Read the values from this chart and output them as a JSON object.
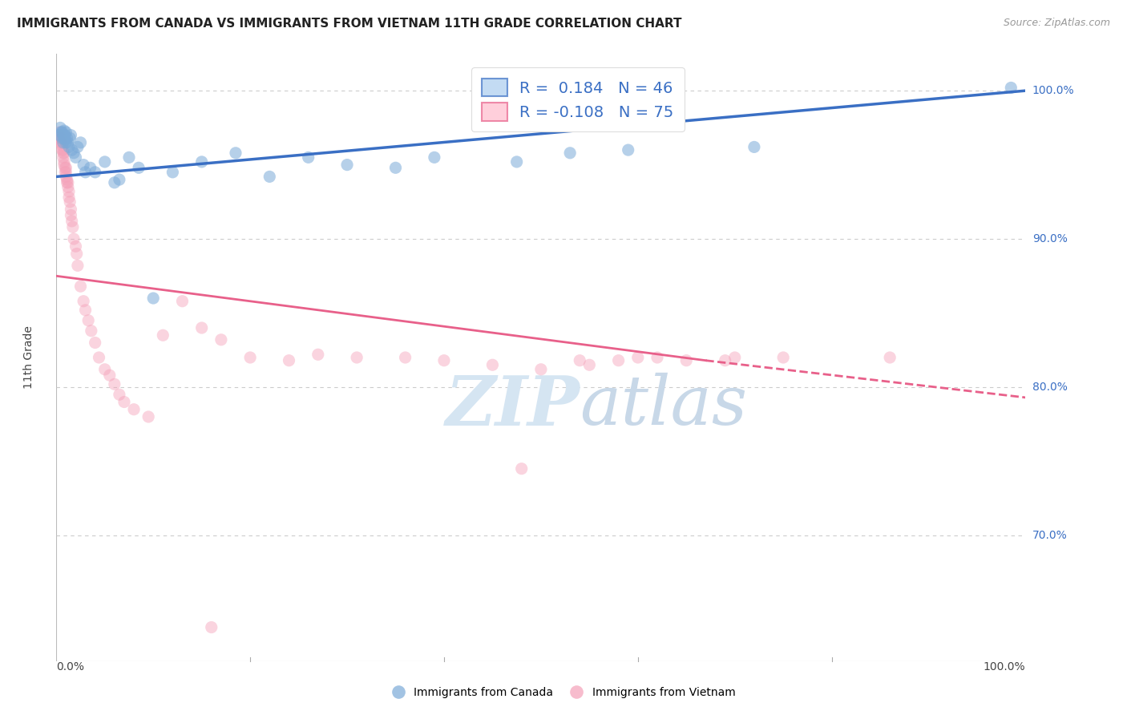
{
  "title": "IMMIGRANTS FROM CANADA VS IMMIGRANTS FROM VIETNAM 11TH GRADE CORRELATION CHART",
  "source": "Source: ZipAtlas.com",
  "ylabel": "11th Grade",
  "blue_color": "#3A6FC4",
  "pink_color": "#E8608A",
  "blue_scatter_color": "#7BAAD8",
  "pink_scatter_color": "#F4A0B8",
  "blue_R": 0.184,
  "blue_N": 46,
  "pink_R": -0.108,
  "pink_N": 75,
  "xlim": [
    0.0,
    1.0
  ],
  "ylim": [
    0.615,
    1.025
  ],
  "ytick_positions": [
    1.0,
    0.9,
    0.8,
    0.7
  ],
  "ytick_labels": [
    "100.0%",
    "90.0%",
    "80.0%",
    "70.0%"
  ],
  "grid_color": "#CCCCCC",
  "bg_color": "#FFFFFF",
  "title_fontsize": 11,
  "source_fontsize": 9,
  "marker_size": 120,
  "blue_line": [
    0.0,
    0.942,
    1.0,
    1.0
  ],
  "pink_line_solid": [
    0.0,
    0.875,
    0.67,
    0.818
  ],
  "pink_line_dashed": [
    0.67,
    0.818,
    1.0,
    0.793
  ],
  "blue_x": [
    0.003,
    0.004,
    0.005,
    0.006,
    0.006,
    0.007,
    0.007,
    0.008,
    0.008,
    0.009,
    0.009,
    0.01,
    0.01,
    0.011,
    0.012,
    0.013,
    0.014,
    0.015,
    0.016,
    0.018,
    0.02,
    0.022,
    0.025,
    0.028,
    0.03,
    0.035,
    0.04,
    0.05,
    0.06,
    0.065,
    0.075,
    0.085,
    0.1,
    0.12,
    0.15,
    0.185,
    0.22,
    0.26,
    0.3,
    0.35,
    0.39,
    0.475,
    0.53,
    0.59,
    0.72,
    0.985
  ],
  "blue_y": [
    0.97,
    0.975,
    0.972,
    0.968,
    0.972,
    0.97,
    0.965,
    0.968,
    0.973,
    0.967,
    0.97,
    0.972,
    0.965,
    0.968,
    0.965,
    0.962,
    0.968,
    0.97,
    0.96,
    0.958,
    0.955,
    0.962,
    0.965,
    0.95,
    0.945,
    0.948,
    0.945,
    0.952,
    0.938,
    0.94,
    0.955,
    0.948,
    0.86,
    0.945,
    0.952,
    0.958,
    0.942,
    0.955,
    0.95,
    0.948,
    0.955,
    0.952,
    0.958,
    0.96,
    0.962,
    1.002
  ],
  "pink_x": [
    0.002,
    0.002,
    0.003,
    0.003,
    0.004,
    0.004,
    0.005,
    0.005,
    0.006,
    0.006,
    0.006,
    0.007,
    0.007,
    0.007,
    0.008,
    0.008,
    0.008,
    0.009,
    0.009,
    0.01,
    0.01,
    0.01,
    0.011,
    0.011,
    0.012,
    0.012,
    0.013,
    0.013,
    0.014,
    0.015,
    0.015,
    0.016,
    0.017,
    0.018,
    0.02,
    0.021,
    0.022,
    0.025,
    0.028,
    0.03,
    0.033,
    0.036,
    0.04,
    0.044,
    0.05,
    0.055,
    0.06,
    0.065,
    0.07,
    0.08,
    0.095,
    0.11,
    0.13,
    0.15,
    0.17,
    0.2,
    0.24,
    0.27,
    0.31,
    0.36,
    0.4,
    0.45,
    0.5,
    0.54,
    0.58,
    0.62,
    0.65,
    0.69,
    0.48,
    0.55,
    0.6,
    0.7,
    0.75,
    0.86,
    0.16
  ],
  "pink_y": [
    0.97,
    0.968,
    0.972,
    0.97,
    0.965,
    0.968,
    0.968,
    0.965,
    0.965,
    0.963,
    0.96,
    0.96,
    0.958,
    0.955,
    0.958,
    0.952,
    0.95,
    0.948,
    0.945,
    0.948,
    0.945,
    0.942,
    0.94,
    0.938,
    0.938,
    0.935,
    0.932,
    0.928,
    0.925,
    0.92,
    0.916,
    0.912,
    0.908,
    0.9,
    0.895,
    0.89,
    0.882,
    0.868,
    0.858,
    0.852,
    0.845,
    0.838,
    0.83,
    0.82,
    0.812,
    0.808,
    0.802,
    0.795,
    0.79,
    0.785,
    0.78,
    0.835,
    0.858,
    0.84,
    0.832,
    0.82,
    0.818,
    0.822,
    0.82,
    0.82,
    0.818,
    0.815,
    0.812,
    0.818,
    0.818,
    0.82,
    0.818,
    0.818,
    0.745,
    0.815,
    0.82,
    0.82,
    0.82,
    0.82,
    0.638
  ]
}
